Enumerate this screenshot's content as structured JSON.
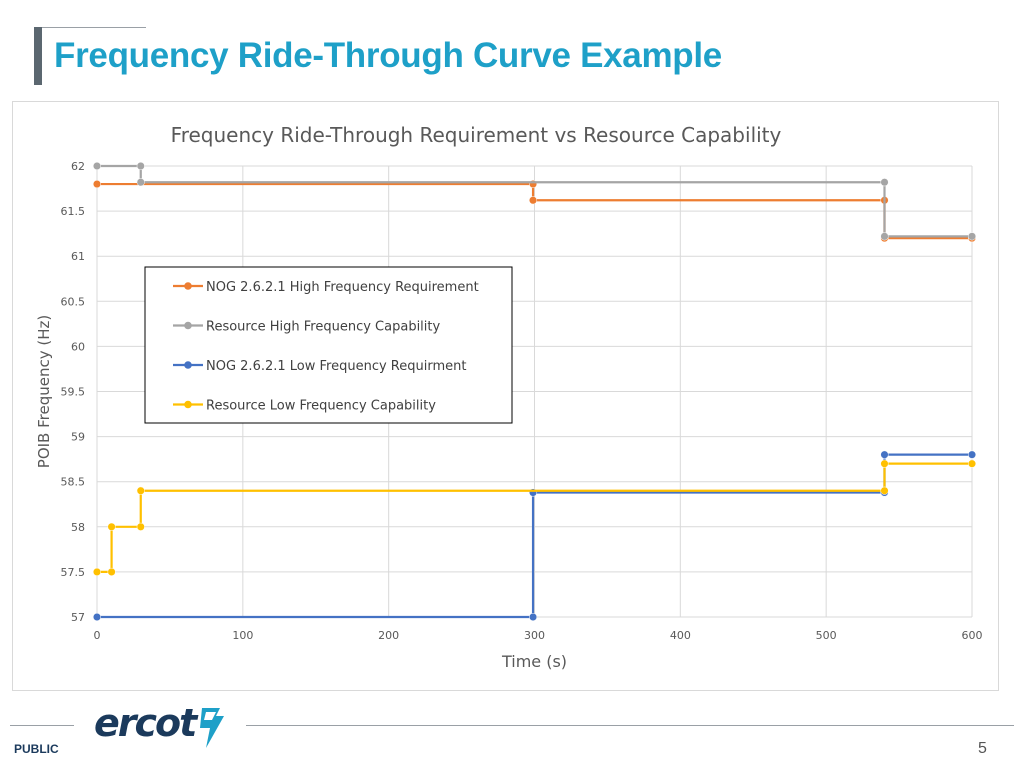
{
  "slide": {
    "title": "Frequency Ride-Through Curve Example",
    "footer_label": "PUBLIC",
    "page_number": "5",
    "logo_text": "ercot",
    "logo_color": "#1b3a5c",
    "logo_accent": "#1ea0c8",
    "title_color": "#1ea0c8"
  },
  "chart_data": {
    "type": "line",
    "title": "Frequency Ride-Through Requirement vs Resource Capability",
    "xlabel": "Time (s)",
    "ylabel": "POIB Frequency (Hz)",
    "xlim": [
      0,
      600
    ],
    "ylim": [
      57,
      62
    ],
    "xticks": [
      "0",
      "100",
      "200",
      "300",
      "400",
      "500",
      "600"
    ],
    "yticks": [
      "57",
      "57.5",
      "58",
      "58.5",
      "59",
      "59.5",
      "60",
      "60.5",
      "61",
      "61.5",
      "62"
    ],
    "grid": true,
    "legend_placement": "center-left",
    "series": [
      {
        "name": "NOG 2.6.2.1 High Frequency Requirement",
        "color": "#ed7d31",
        "points": [
          [
            0,
            61.8
          ],
          [
            299,
            61.8
          ],
          [
            299,
            61.62
          ],
          [
            540,
            61.62
          ],
          [
            540,
            61.2
          ],
          [
            600,
            61.2
          ]
        ]
      },
      {
        "name": "Resource High Frequency Capability",
        "color": "#a5a5a5",
        "points": [
          [
            0,
            62
          ],
          [
            30,
            62
          ],
          [
            30,
            61.82
          ],
          [
            540,
            61.82
          ],
          [
            540,
            61.22
          ],
          [
            600,
            61.22
          ]
        ]
      },
      {
        "name": "NOG 2.6.2.1 Low Frequency Requirment",
        "color": "#4472c4",
        "points": [
          [
            0,
            57
          ],
          [
            299,
            57
          ],
          [
            299,
            58.38
          ],
          [
            540,
            58.38
          ],
          [
            540,
            58.8
          ],
          [
            600,
            58.8
          ]
        ]
      },
      {
        "name": "Resource Low Frequency Capability",
        "color": "#ffc000",
        "points": [
          [
            0,
            57.5
          ],
          [
            10,
            57.5
          ],
          [
            10,
            58
          ],
          [
            30,
            58
          ],
          [
            30,
            58.4
          ],
          [
            540,
            58.4
          ],
          [
            540,
            58.7
          ],
          [
            600,
            58.7
          ]
        ]
      }
    ]
  }
}
